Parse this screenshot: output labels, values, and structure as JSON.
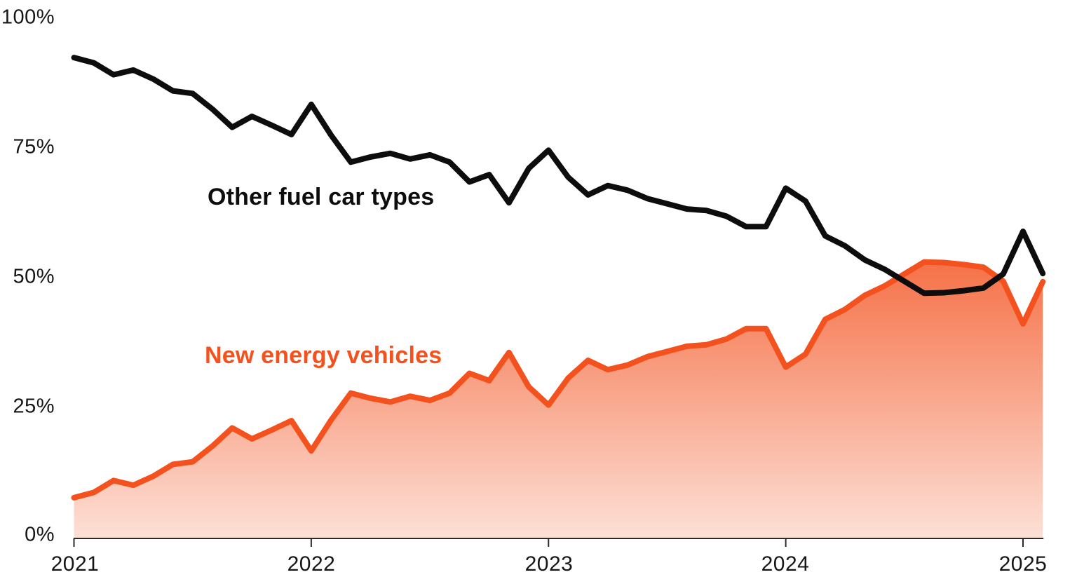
{
  "chart_data": {
    "type": "line",
    "x": [
      "2021-01",
      "2021-02",
      "2021-03",
      "2021-04",
      "2021-05",
      "2021-06",
      "2021-07",
      "2021-08",
      "2021-09",
      "2021-10",
      "2021-11",
      "2021-12",
      "2022-01",
      "2022-02",
      "2022-03",
      "2022-04",
      "2022-05",
      "2022-06",
      "2022-07",
      "2022-08",
      "2022-09",
      "2022-10",
      "2022-11",
      "2022-12",
      "2023-01",
      "2023-02",
      "2023-03",
      "2023-04",
      "2023-05",
      "2023-06",
      "2023-07",
      "2023-08",
      "2023-09",
      "2023-10",
      "2023-11",
      "2023-12",
      "2024-01",
      "2024-02",
      "2024-03",
      "2024-04",
      "2024-05",
      "2024-06",
      "2024-07",
      "2024-08",
      "2024-09",
      "2024-10",
      "2024-11",
      "2024-12",
      "2025-01",
      "2025-02"
    ],
    "series": [
      {
        "name": "Other fuel car types",
        "color": "#0d0d0d",
        "values": [
          92.3,
          91.3,
          89.0,
          89.9,
          88.2,
          85.9,
          85.4,
          82.4,
          78.9,
          81.0,
          79.3,
          77.5,
          83.3,
          77.4,
          72.2,
          73.2,
          73.9,
          72.8,
          73.6,
          72.2,
          68.4,
          69.8,
          64.4,
          71.0,
          74.5,
          69.3,
          65.9,
          67.7,
          66.8,
          65.2,
          64.2,
          63.2,
          62.9,
          61.8,
          59.8,
          59.8,
          67.2,
          64.7,
          58.0,
          56.1,
          53.4,
          51.6,
          49.3,
          47.0,
          47.1,
          47.5,
          48.0,
          50.7,
          58.9,
          50.8
        ]
      },
      {
        "name": "New energy vehicles",
        "color": "#f3511e",
        "area_fill": true,
        "area_fill_color": "#f3511e",
        "area_fill_opacity_top": 0.82,
        "area_fill_opacity_bottom": 0.18,
        "values": [
          7.7,
          8.7,
          11.0,
          10.1,
          11.8,
          14.1,
          14.6,
          17.6,
          21.1,
          19.0,
          20.7,
          22.5,
          16.7,
          22.6,
          27.8,
          26.8,
          26.1,
          27.2,
          26.4,
          27.8,
          31.6,
          30.2,
          35.6,
          29.0,
          25.5,
          30.7,
          34.1,
          32.3,
          33.2,
          34.8,
          35.8,
          36.8,
          37.1,
          38.2,
          40.2,
          40.2,
          32.8,
          35.3,
          42.0,
          43.9,
          46.6,
          48.4,
          50.7,
          53.0,
          52.9,
          52.5,
          52.0,
          49.3,
          41.1,
          49.2
        ]
      }
    ],
    "ylim": [
      0,
      100
    ],
    "y_tick_labels": [
      "100%",
      "75%",
      "50%",
      "25%",
      "0%"
    ],
    "y_tick_values": [
      100,
      75,
      50,
      25,
      0
    ],
    "x_tick_labels": [
      "2021",
      "2022",
      "2023",
      "2024",
      "2025"
    ],
    "x_tick_month_index": [
      0,
      12,
      24,
      36,
      48
    ],
    "grid": false,
    "legend": "inline-labels",
    "title": "",
    "xlabel": "",
    "ylabel": ""
  },
  "annotations": {
    "other_label": "Other fuel car types",
    "nev_label": "New energy vehicles"
  },
  "axis_color": "#2b2b2b"
}
